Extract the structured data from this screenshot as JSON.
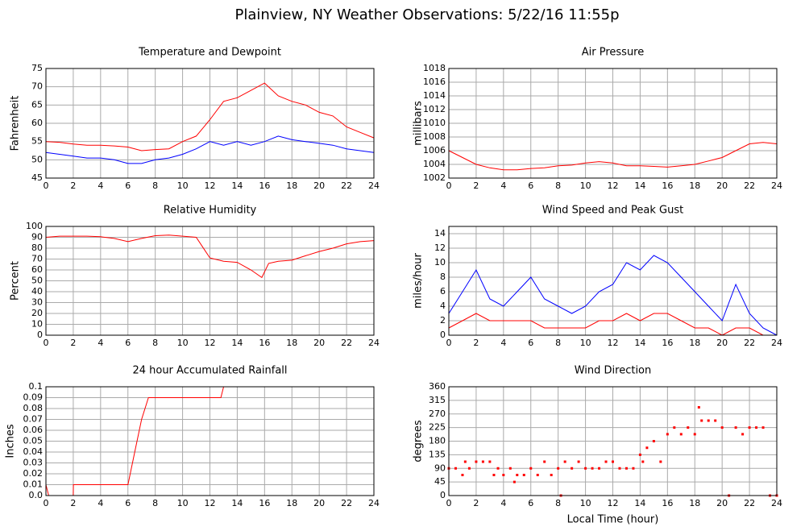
{
  "title": "Plainview, NY Weather Observations: 5/22/16 11:55p",
  "chart_data": [
    {
      "type": "line",
      "title": "Temperature and Dewpoint",
      "ylabel": "Fahrenheit",
      "x": [
        0,
        1,
        2,
        3,
        4,
        5,
        6,
        7,
        8,
        9,
        10,
        11,
        12,
        13,
        14,
        15,
        16,
        17,
        18,
        19,
        20,
        21,
        22,
        23,
        24
      ],
      "series": [
        {
          "name": "Temperature",
          "color": "#ff0000",
          "values": [
            55,
            54.8,
            54.3,
            54,
            54,
            53.8,
            53.5,
            52.5,
            52.8,
            53,
            55,
            56.5,
            61,
            66,
            67,
            69,
            71,
            67.5,
            66,
            65,
            63,
            62,
            59,
            57.5,
            56
          ]
        },
        {
          "name": "Dewpoint",
          "color": "#0000ff",
          "values": [
            52,
            51.5,
            51,
            50.5,
            50.5,
            50,
            49,
            49,
            50,
            50.5,
            51.5,
            53,
            55,
            54,
            55,
            54,
            55,
            56.5,
            55.5,
            55,
            54.5,
            54,
            53,
            52.5,
            52
          ]
        }
      ],
      "xlim": [
        0,
        24
      ],
      "xticks": [
        0,
        2,
        4,
        6,
        8,
        10,
        12,
        14,
        16,
        18,
        20,
        22,
        24
      ],
      "ylim": [
        45,
        75
      ],
      "yticks": [
        45,
        50,
        55,
        60,
        65,
        70,
        75
      ],
      "grid": true
    },
    {
      "type": "line",
      "title": "Air Pressure",
      "ylabel": "millibars",
      "x": [
        0,
        1,
        2,
        3,
        4,
        5,
        6,
        7,
        8,
        9,
        10,
        11,
        12,
        13,
        14,
        15,
        16,
        17,
        18,
        19,
        20,
        21,
        22,
        23,
        24
      ],
      "series": [
        {
          "name": "Pressure",
          "color": "#ff0000",
          "values": [
            1006,
            1005,
            1004,
            1003.5,
            1003.2,
            1003.2,
            1003.4,
            1003.5,
            1003.8,
            1003.9,
            1004.2,
            1004.4,
            1004.2,
            1003.8,
            1003.8,
            1003.7,
            1003.6,
            1003.8,
            1004,
            1004.5,
            1005,
            1006,
            1007,
            1007.2,
            1007
          ]
        }
      ],
      "xlim": [
        0,
        24
      ],
      "xticks": [
        0,
        2,
        4,
        6,
        8,
        10,
        12,
        14,
        16,
        18,
        20,
        22,
        24
      ],
      "ylim": [
        1002,
        1018
      ],
      "yticks": [
        1002,
        1004,
        1006,
        1008,
        1010,
        1012,
        1014,
        1016,
        1018
      ],
      "grid": true
    },
    {
      "type": "line",
      "title": "Relative Humidity",
      "ylabel": "Percent",
      "x": [
        0,
        1,
        2,
        3,
        4,
        5,
        6,
        7,
        8,
        9,
        10,
        11,
        12,
        13,
        14,
        15,
        15.8,
        16.3,
        17,
        18,
        19,
        20,
        21,
        22,
        23,
        24
      ],
      "series": [
        {
          "name": "Humidity",
          "color": "#ff0000",
          "values": [
            90,
            91,
            91,
            91,
            90.5,
            89,
            86,
            89,
            91.5,
            92,
            91,
            90,
            71,
            68,
            67,
            60,
            53,
            66,
            68,
            69,
            73,
            77,
            80,
            84,
            86,
            87
          ]
        }
      ],
      "xlim": [
        0,
        24
      ],
      "xticks": [
        0,
        2,
        4,
        6,
        8,
        10,
        12,
        14,
        16,
        18,
        20,
        22,
        24
      ],
      "ylim": [
        0,
        100
      ],
      "yticks": [
        0,
        10,
        20,
        30,
        40,
        50,
        60,
        70,
        80,
        90,
        100
      ],
      "grid": true
    },
    {
      "type": "line",
      "title": "Wind Speed and Peak Gust",
      "ylabel": "miles/hour",
      "x": [
        0,
        1,
        2,
        3,
        4,
        5,
        6,
        7,
        8,
        9,
        10,
        11,
        12,
        13,
        14,
        15,
        16,
        17,
        18,
        19,
        20,
        21,
        22,
        23,
        24
      ],
      "series": [
        {
          "name": "Peak Gust",
          "color": "#0000ff",
          "values": [
            3,
            6,
            9,
            5,
            4,
            6,
            8,
            5,
            4,
            3,
            4,
            6,
            7,
            10,
            9,
            11,
            10,
            8,
            6,
            4,
            2,
            7,
            3,
            1,
            0
          ]
        },
        {
          "name": "Wind Speed",
          "color": "#ff0000",
          "values": [
            1,
            2,
            3,
            2,
            2,
            2,
            2,
            1,
            1,
            1,
            1,
            2,
            2,
            3,
            2,
            3,
            3,
            2,
            1,
            1,
            0,
            1,
            1,
            0,
            0
          ]
        }
      ],
      "xlim": [
        0,
        24
      ],
      "xticks": [
        0,
        2,
        4,
        6,
        8,
        10,
        12,
        14,
        16,
        18,
        20,
        22,
        24
      ],
      "ylim": [
        0,
        15
      ],
      "yticks": [
        0,
        2,
        4,
        6,
        8,
        10,
        12,
        14
      ],
      "grid": true
    },
    {
      "type": "line",
      "title": "24 hour Accumulated Rainfall",
      "ylabel": "Inches",
      "x": [
        0,
        0.2,
        2,
        2.01,
        6,
        6.5,
        7,
        7.5,
        8,
        12.8,
        13,
        24
      ],
      "series": [
        {
          "name": "Rainfall",
          "color": "#ff0000",
          "values": [
            0.01,
            0,
            0,
            0.01,
            0.01,
            0.04,
            0.07,
            0.09,
            0.09,
            0.09,
            0.1,
            0.1
          ]
        }
      ],
      "xlim": [
        0,
        24
      ],
      "xticks": [
        0,
        2,
        4,
        6,
        8,
        10,
        12,
        14,
        16,
        18,
        20,
        22,
        24
      ],
      "ylim": [
        0,
        0.1
      ],
      "yticks": [
        {
          "value": 0,
          "label": "0.0"
        },
        0.01,
        0.02,
        0.03,
        0.04,
        0.05,
        0.06,
        0.07,
        0.08,
        0.09,
        0.1
      ],
      "grid": true
    },
    {
      "type": "scatter",
      "title": "Wind Direction",
      "ylabel": "degrees",
      "xlabel": "Local Time (hour)",
      "x": [
        0,
        0.5,
        1,
        1.2,
        1.5,
        2,
        2.5,
        3,
        3.3,
        3.6,
        4,
        4.5,
        4.8,
        5,
        5.5,
        6,
        6.5,
        7,
        7.5,
        8,
        8.2,
        8.5,
        9,
        9.5,
        10,
        10.5,
        11,
        11.5,
        12,
        12.5,
        13,
        13.5,
        14,
        14.2,
        14.5,
        15,
        15.5,
        16,
        16.5,
        17,
        17.5,
        18,
        18.3,
        18.5,
        19,
        19.5,
        20,
        20.5,
        21,
        21.5,
        22,
        22.5,
        23,
        23.5,
        24
      ],
      "values": [
        90,
        90,
        68,
        112,
        90,
        112,
        112,
        112,
        68,
        90,
        68,
        90,
        45,
        68,
        68,
        90,
        68,
        112,
        68,
        90,
        0,
        112,
        90,
        112,
        90,
        90,
        90,
        112,
        112,
        90,
        90,
        90,
        135,
        112,
        158,
        180,
        112,
        203,
        225,
        203,
        225,
        203,
        292,
        248,
        248,
        248,
        225,
        0,
        225,
        203,
        225,
        225,
        225,
        0,
        0
      ],
      "color": "#ff0000",
      "xlim": [
        0,
        24
      ],
      "xticks": [
        0,
        2,
        4,
        6,
        8,
        10,
        12,
        14,
        16,
        18,
        20,
        22,
        24
      ],
      "ylim": [
        0,
        360
      ],
      "yticks": [
        0,
        45,
        90,
        135,
        180,
        225,
        270,
        315,
        360
      ],
      "grid": true
    }
  ]
}
